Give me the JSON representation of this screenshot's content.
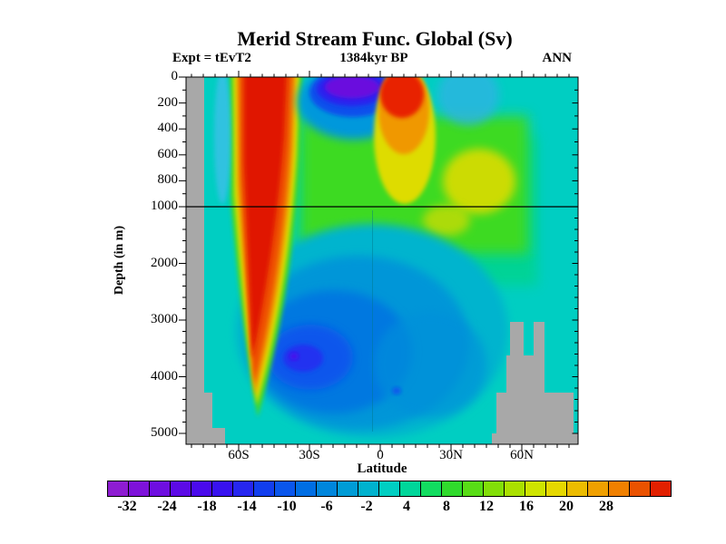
{
  "chart_data": {
    "type": "heatmap",
    "subtype": "filled-contour-section",
    "title": "Merid Stream Func. Global (Sv)",
    "subtitle": "1384kyr BP",
    "experiment_label": "Expt = tEvT2",
    "season_label": "ANN",
    "units": "Sv",
    "xlabel": "Latitude",
    "ylabel": "Depth (in m)",
    "x_ticks": [
      "60S",
      "30S",
      "0",
      "30N",
      "60N"
    ],
    "y_ticks": [
      "0",
      "200",
      "400",
      "600",
      "800",
      "1000",
      "2000",
      "3000",
      "4000",
      "5000"
    ],
    "y_axis_note": "split linear depth scale: expanded 0-1000 m above reference line, compressed 1000-5000+ m below",
    "reference_line_depth_m": 1000,
    "background_value_range_sv": "-2 to 4",
    "land_mask_color": "#a8a8a8",
    "colorbar": {
      "labels": [
        "-32",
        "-24",
        "-18",
        "-14",
        "-10",
        "-6",
        "-2",
        "4",
        "8",
        "12",
        "16",
        "20",
        "28"
      ],
      "cell_colors": [
        "#8e1cd2",
        "#7e12da",
        "#6e0ee0",
        "#5c0ae6",
        "#4a0aec",
        "#3812f0",
        "#2626f0",
        "#123eee",
        "#0a56ec",
        "#006ee4",
        "#0086dc",
        "#009cd6",
        "#00b2ce",
        "#00cec2",
        "#00d69a",
        "#12dc60",
        "#30da2c",
        "#58dc16",
        "#82de08",
        "#aae000",
        "#cee400",
        "#e6d800",
        "#ecbc00",
        "#f0a000",
        "#f08000",
        "#ea5200",
        "#e22000"
      ]
    },
    "features": [
      {
        "name": "southern-positive-cell",
        "lat": "70S-45S",
        "depth_m": [
          0,
          4300
        ],
        "value_sv": "> 28",
        "note": "deep red wedge narrowing with depth near 60S"
      },
      {
        "name": "tropical-surface-negative-cell",
        "lat": "25S-2N",
        "depth_m": [
          0,
          200
        ],
        "value_sv": "< -32",
        "note": "purple/blue blob at surface"
      },
      {
        "name": "northern-tropical-surface-positive-cell",
        "lat": "2N-18N",
        "depth_m": [
          0,
          400
        ],
        "value_sv": "20 to 28",
        "note": "red/orange blob at surface"
      },
      {
        "name": "upper-ocean-positive-band",
        "lat": "30S-55N",
        "depth_m": [
          150,
          1800
        ],
        "value_sv": "4 to 16",
        "note": "green band with yellow patches near 20N-40N, 600-1000 m"
      },
      {
        "name": "deep-negative-cell",
        "lat": "45S-10N",
        "depth_m": [
          2200,
          4800
        ],
        "value_sv": "-14 to -4",
        "note": "blue region, darkest core near 35S at 3500-4000 m"
      },
      {
        "name": "land-topography-mask",
        "regions": [
          "left margin near Antarctica",
          "bottom-left shelf",
          "stepped bottom topography 40N-80N"
        ]
      }
    ]
  }
}
